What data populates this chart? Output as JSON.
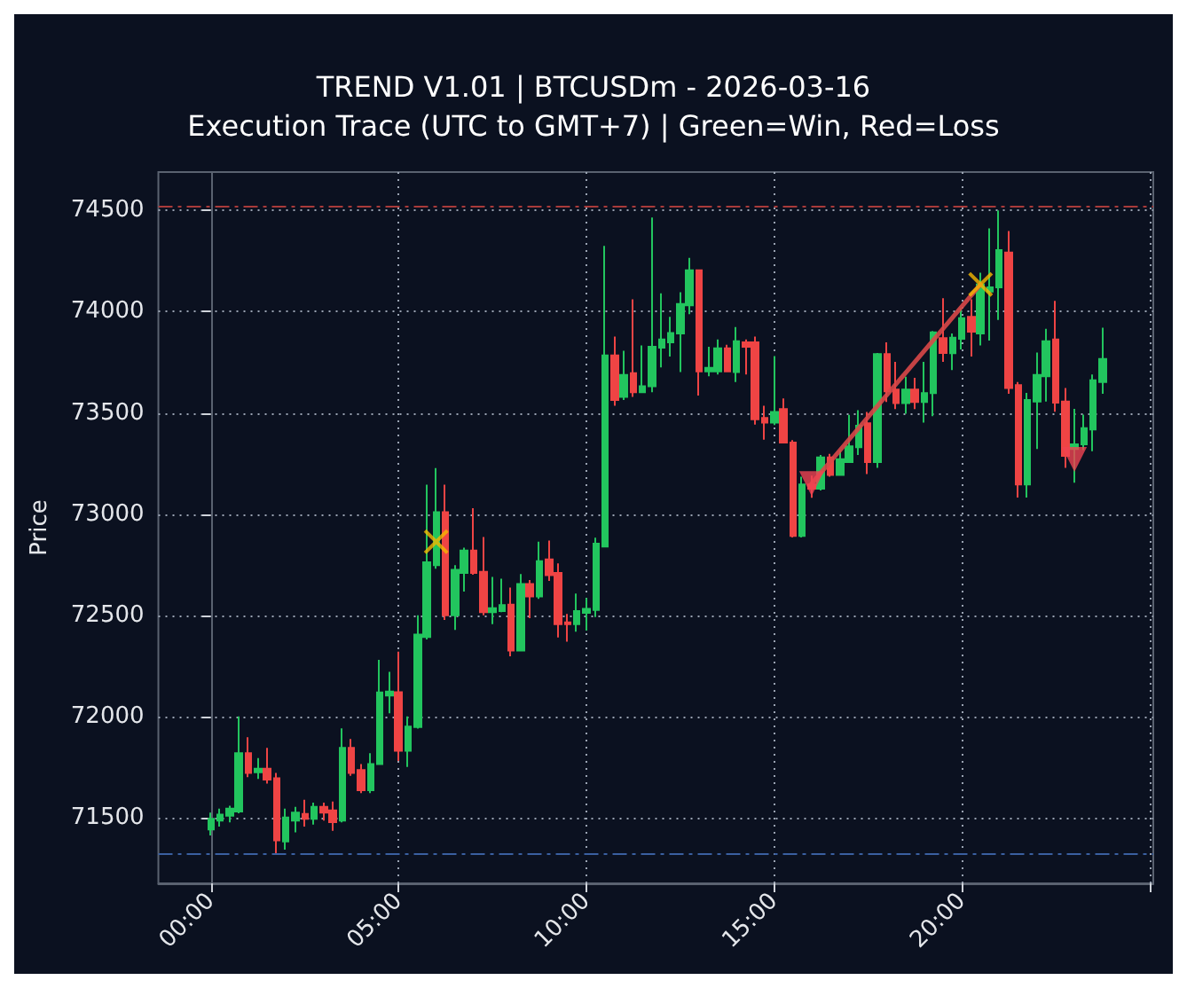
{
  "chart_data": {
    "type": "candlestick",
    "title": "TREND V1.01 | BTCUSDm - 2026-03-16",
    "subtitle": "Execution Trace (UTC to GMT+7) | Green=Win, Red=Loss",
    "ylabel": "Price",
    "x": [
      0,
      0.25,
      0.5,
      0.75,
      1,
      1.25,
      1.5,
      1.75,
      2,
      2.25,
      2.5,
      2.75,
      3,
      3.25,
      3.5,
      3.75,
      4,
      4.25,
      4.5,
      4.75,
      5,
      5.25,
      5.5,
      5.75,
      6,
      6.25,
      6.5,
      6.75,
      7,
      7.25,
      7.5,
      7.75,
      8,
      8.25,
      8.5,
      8.75,
      9,
      9.25,
      9.5,
      9.75,
      10,
      10.25,
      10.5,
      10.75,
      11,
      11.25,
      11.5,
      11.75,
      12,
      12.25,
      12.5,
      12.75,
      13,
      13.25,
      13.5,
      13.75,
      14,
      14.25,
      14.5,
      14.75,
      15,
      15.25,
      15.5,
      15.75,
      16,
      16.25,
      16.5,
      16.75,
      17,
      17.25,
      17.5,
      17.75,
      18,
      18.25,
      18.5,
      18.75,
      19,
      19.25,
      19.5,
      19.75,
      20,
      20.25,
      20.5,
      20.75,
      21,
      21.25,
      21.5,
      21.75,
      22,
      22.25,
      22.5,
      22.75,
      23,
      23.25,
      23.5,
      23.75
    ],
    "ohlc": [
      [
        71441,
        71524,
        71412,
        71494
      ],
      [
        71485,
        71544,
        71456,
        71515
      ],
      [
        71509,
        71559,
        71476,
        71544
      ],
      [
        71530,
        72000,
        71521,
        71818
      ],
      [
        71818,
        71897,
        71700,
        71721
      ],
      [
        71724,
        71794,
        71691,
        71741
      ],
      [
        71741,
        71844,
        71668,
        71688
      ],
      [
        71694,
        71721,
        71315,
        71388
      ],
      [
        71382,
        71544,
        71341,
        71500
      ],
      [
        71485,
        71553,
        71427,
        71524
      ],
      [
        71518,
        71588,
        71456,
        71494
      ],
      [
        71494,
        71574,
        71465,
        71553
      ],
      [
        71553,
        71574,
        71485,
        71524
      ],
      [
        71535,
        71579,
        71435,
        71477
      ],
      [
        71485,
        71941,
        71476,
        71844
      ],
      [
        71844,
        71888,
        71706,
        71721
      ],
      [
        71735,
        71765,
        71621,
        71635
      ],
      [
        71635,
        71818,
        71621,
        71765
      ],
      [
        71765,
        72280,
        71760,
        72118
      ],
      [
        72103,
        72220,
        72015,
        72123
      ],
      [
        72120,
        72320,
        71780,
        71830
      ],
      [
        71830,
        72000,
        71750,
        71950
      ],
      [
        71947,
        72500,
        71940,
        72404
      ],
      [
        72392,
        73145,
        72380,
        72762
      ],
      [
        72747,
        73227,
        72730,
        73009
      ],
      [
        73009,
        73145,
        72477,
        72500
      ],
      [
        72500,
        72747,
        72427,
        72724
      ],
      [
        72709,
        72834,
        72617,
        72820
      ],
      [
        72820,
        73029,
        72700,
        72709
      ],
      [
        72715,
        72887,
        72500,
        72515
      ],
      [
        72515,
        72689,
        72456,
        72535
      ],
      [
        72520,
        72680,
        72515,
        72550
      ],
      [
        72552,
        72637,
        72297,
        72326
      ],
      [
        72326,
        72703,
        72326,
        72654
      ],
      [
        72654,
        72674,
        72485,
        72593
      ],
      [
        72593,
        72863,
        72581,
        72767
      ],
      [
        72776,
        72869,
        72669,
        72698
      ],
      [
        72709,
        72756,
        72390,
        72456
      ],
      [
        72465,
        72506,
        72369,
        72456
      ],
      [
        72456,
        72607,
        72419,
        72520
      ],
      [
        72512,
        72585,
        72424,
        72532
      ],
      [
        72526,
        72883,
        72491,
        72854
      ],
      [
        72839,
        74325,
        72839,
        73784
      ],
      [
        73784,
        73877,
        73535,
        73564
      ],
      [
        73579,
        73807,
        73564,
        73687
      ],
      [
        73696,
        74061,
        73579,
        73602
      ],
      [
        73602,
        73833,
        73602,
        73632
      ],
      [
        73632,
        74465,
        73602,
        73827
      ],
      [
        73822,
        74091,
        73725,
        73863
      ],
      [
        73848,
        73974,
        73778,
        73895
      ],
      [
        73892,
        74096,
        73702,
        74038
      ],
      [
        74032,
        74266,
        73988,
        74205
      ],
      [
        74205,
        74205,
        73585,
        73705
      ],
      [
        73705,
        73827,
        73681,
        73722
      ],
      [
        73705,
        73863,
        73690,
        73819
      ],
      [
        73819,
        73836,
        73702,
        73705
      ],
      [
        73702,
        73924,
        73652,
        73854
      ],
      [
        73848,
        73863,
        73690,
        73827
      ],
      [
        73848,
        73877,
        73442,
        73468
      ],
      [
        73475,
        73535,
        73367,
        73452
      ],
      [
        73452,
        73781,
        73440,
        73504
      ],
      [
        73519,
        73571,
        73353,
        73353
      ],
      [
        73353,
        73365,
        72884,
        72892
      ],
      [
        72892,
        73184,
        72884,
        73146
      ],
      [
        73146,
        73190,
        73080,
        73125
      ],
      [
        73125,
        73292,
        73117,
        73280
      ],
      [
        73280,
        73297,
        73184,
        73193
      ],
      [
        73193,
        73315,
        73193,
        73271
      ],
      [
        73257,
        73490,
        73257,
        73335
      ],
      [
        73330,
        73513,
        73292,
        73437
      ],
      [
        73449,
        73504,
        73198,
        73257
      ],
      [
        73257,
        73796,
        73228,
        73790
      ],
      [
        73790,
        73848,
        73554,
        73606
      ],
      [
        73615,
        73752,
        73519,
        73548
      ],
      [
        73548,
        73679,
        73496,
        73615
      ],
      [
        73615,
        73673,
        73519,
        73554
      ],
      [
        73554,
        73752,
        73452,
        73598
      ],
      [
        73598,
        73904,
        73484,
        73898
      ],
      [
        73869,
        74067,
        73752,
        73796
      ],
      [
        73795,
        73892,
        73711,
        73871
      ],
      [
        73866,
        74018,
        73813,
        73968
      ],
      [
        73974,
        74061,
        73778,
        73901
      ],
      [
        73892,
        74193,
        73833,
        74135
      ],
      [
        74099,
        74412,
        73857,
        74120
      ],
      [
        74120,
        74500,
        73959,
        74304
      ],
      [
        74292,
        74398,
        73594,
        73623
      ],
      [
        73637,
        73652,
        73082,
        73146
      ],
      [
        73146,
        73599,
        73082,
        73564
      ],
      [
        73556,
        73798,
        73322,
        73687
      ],
      [
        73681,
        73915,
        73556,
        73854
      ],
      [
        73863,
        74053,
        73506,
        73550
      ],
      [
        73556,
        73623,
        73228,
        73287
      ],
      [
        73322,
        73520,
        73155,
        73345
      ],
      [
        73345,
        73491,
        73316,
        73424
      ],
      [
        73418,
        73690,
        73310,
        73661
      ],
      [
        73652,
        73921,
        73594,
        73766
      ]
    ],
    "colors": [
      "#22c55e",
      "#22c55e",
      "#22c55e",
      "#22c55e",
      "#ef4444",
      "#22c55e",
      "#ef4444",
      "#ef4444",
      "#22c55e",
      "#22c55e",
      "#ef4444",
      "#22c55e",
      "#ef4444",
      "#ef4444",
      "#22c55e",
      "#ef4444",
      "#ef4444",
      "#22c55e",
      "#22c55e",
      "#22c55e",
      "#ef4444",
      "#22c55e",
      "#22c55e",
      "#22c55e",
      "#22c55e",
      "#ef4444",
      "#22c55e",
      "#22c55e",
      "#ef4444",
      "#ef4444",
      "#22c55e",
      "#22c55e",
      "#ef4444",
      "#22c55e",
      "#ef4444",
      "#22c55e",
      "#ef4444",
      "#ef4444",
      "#ef4444",
      "#22c55e",
      "#22c55e",
      "#22c55e",
      "#22c55e",
      "#ef4444",
      "#22c55e",
      "#ef4444",
      "#22c55e",
      "#22c55e",
      "#22c55e",
      "#22c55e",
      "#22c55e",
      "#22c55e",
      "#ef4444",
      "#22c55e",
      "#22c55e",
      "#ef4444",
      "#22c55e",
      "#ef4444",
      "#ef4444",
      "#ef4444",
      "#22c55e",
      "#ef4444",
      "#ef4444",
      "#22c55e",
      "#ef4444",
      "#22c55e",
      "#ef4444",
      "#22c55e",
      "#22c55e",
      "#22c55e",
      "#ef4444",
      "#22c55e",
      "#ef4444",
      "#ef4444",
      "#22c55e",
      "#ef4444",
      "#22c55e",
      "#22c55e",
      "#ef4444",
      "#22c55e",
      "#22c55e",
      "#ef4444",
      "#22c55e",
      "#22c55e",
      "#22c55e",
      "#ef4444",
      "#ef4444",
      "#22c55e",
      "#22c55e",
      "#22c55e",
      "#ef4444",
      "#ef4444",
      "#22c55e",
      "#22c55e",
      "#22c55e",
      "#22c55e"
    ],
    "series": [
      {
        "type": "line",
        "x": [
          16,
          20.5
        ],
        "values": [
          73150,
          74135
        ],
        "color": "#d94848",
        "line_style": "solid"
      },
      {
        "type": "scatter",
        "marker": "cross",
        "x": [
          6,
          20.5
        ],
        "values": [
          72863,
          74135
        ],
        "color": "#f5b800"
      },
      {
        "type": "scatter",
        "marker": "triangle",
        "x": [
          16,
          23
        ],
        "values": [
          73150,
          73270
        ],
        "color": "#f04452"
      }
    ],
    "ref_lines": [
      {
        "axis": "y",
        "value": 74525,
        "color": "#a83a3a",
        "line_style": "dashed"
      },
      {
        "axis": "y",
        "value": 71325,
        "color": "#3a5fa0",
        "line_style": "dashed"
      }
    ],
    "xlim": [
      -1.4,
      25.1
    ],
    "xticks": [
      {
        "value": 0,
        "label": "00:00"
      },
      {
        "value": 5,
        "label": "05:00"
      },
      {
        "value": 10,
        "label": "10:00"
      },
      {
        "value": 15,
        "label": "15:00"
      },
      {
        "value": 20,
        "label": "20:00"
      },
      {
        "value": 25,
        "label": null
      }
    ],
    "ylim": [
      71175,
      74690
    ],
    "yticks": [
      71500,
      72000,
      72500,
      73000,
      73500,
      74000,
      74500
    ],
    "grid": true
  }
}
